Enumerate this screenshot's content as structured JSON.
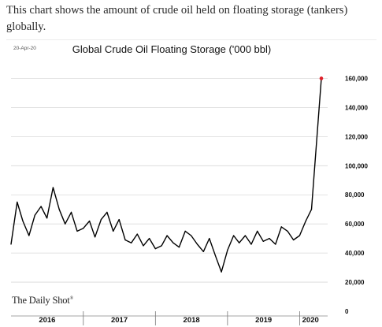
{
  "caption": "This chart shows the amount of crude oil held on floating storage (tankers) globally.",
  "date_stamp": "20-Apr-20",
  "brand": "The Daily Shot",
  "colors": {
    "series": "#000000",
    "highlight": "#e0202a",
    "grid": "#d9d9d9"
  },
  "chart_data": {
    "type": "line",
    "title": "Global Crude Oil Floating Storage ('000 bbl)",
    "xlabel": "",
    "ylabel": "",
    "ylim": [
      0,
      170000
    ],
    "y_ticks": [
      0,
      20000,
      40000,
      60000,
      80000,
      100000,
      120000,
      140000,
      160000
    ],
    "y_tick_labels": [
      "0",
      "20,000",
      "40,000",
      "60,000",
      "80,000",
      "100,000",
      "120,000",
      "140,000",
      "160,000"
    ],
    "x_axis_years": [
      "2016",
      "2017",
      "2018",
      "2019",
      "2020"
    ],
    "x_range": [
      "2016-01-01",
      "2020-04-20"
    ],
    "grid": true,
    "last_point_marker": true,
    "series": [
      {
        "x": [
          "2016-01",
          "2016-02",
          "2016-03",
          "2016-04",
          "2016-05",
          "2016-06",
          "2016-07",
          "2016-08",
          "2016-09",
          "2016-10",
          "2016-11",
          "2016-12",
          "2017-01",
          "2017-02",
          "2017-03",
          "2017-04",
          "2017-05",
          "2017-06",
          "2017-07",
          "2017-08",
          "2017-09",
          "2017-10",
          "2017-11",
          "2017-12",
          "2018-01",
          "2018-02",
          "2018-03",
          "2018-04",
          "2018-05",
          "2018-06",
          "2018-07",
          "2018-08",
          "2018-09",
          "2018-10",
          "2018-11",
          "2018-12",
          "2019-01",
          "2019-02",
          "2019-03",
          "2019-04",
          "2019-05",
          "2019-06",
          "2019-07",
          "2019-08",
          "2019-09",
          "2019-10",
          "2019-11",
          "2019-12",
          "2020-01",
          "2020-02",
          "2020-03",
          "2020-04"
        ],
        "values": [
          46000,
          75000,
          62000,
          52000,
          66000,
          72000,
          64000,
          85000,
          70000,
          60000,
          68000,
          55000,
          57000,
          62000,
          51000,
          63000,
          68000,
          55000,
          63000,
          49000,
          47000,
          53000,
          45000,
          50000,
          43000,
          45000,
          52000,
          47000,
          44000,
          55000,
          52000,
          46000,
          41000,
          50000,
          38000,
          27000,
          42000,
          52000,
          47000,
          52000,
          46000,
          55000,
          48000,
          50000,
          46000,
          58000,
          55000,
          49000,
          52000,
          62000,
          70000,
          160000
        ]
      }
    ]
  }
}
